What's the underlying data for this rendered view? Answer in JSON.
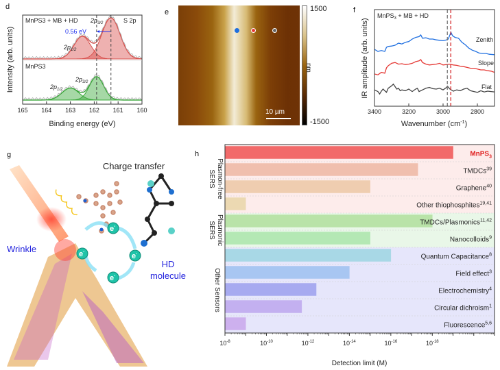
{
  "panels": {
    "d": {
      "label": "d"
    },
    "e": {
      "label": "e"
    },
    "f": {
      "label": "f"
    },
    "g": {
      "label": "g"
    },
    "h": {
      "label": "h"
    }
  },
  "chart_data": [
    {
      "id": "d",
      "type": "line",
      "title": "S 2p",
      "xlabel": "Binding energy (eV)",
      "ylabel": "Intensity (arb. units)",
      "xlim": [
        165,
        160
      ],
      "xticks": [
        "165",
        "164",
        "163",
        "162",
        "161",
        "160"
      ],
      "reference_lines": [
        161.9,
        161.3
      ],
      "shift_annotation": "0.56 eV",
      "colors": {
        "top": "#d9534f",
        "bottom": "#3aa83a",
        "raw": "#aaaaaa",
        "shift": "#2233ee"
      },
      "series": [
        {
          "name": "MnPS3 + MB + HD",
          "label_sub": "3",
          "peaks": [
            {
              "label": "2p1/2",
              "center": 162.5,
              "height": 0.55,
              "width": 0.35
            },
            {
              "label": "2p3/2",
              "center": 161.3,
              "height": 1.0,
              "width": 0.38
            }
          ]
        },
        {
          "name": "MnPS3",
          "label_sub": "3",
          "peaks": [
            {
              "label": "2p1/2",
              "center": 163.0,
              "height": 0.32,
              "width": 0.35
            },
            {
              "label": "2p3/2",
              "center": 161.9,
              "height": 0.62,
              "width": 0.3
            }
          ]
        }
      ]
    },
    {
      "id": "e",
      "type": "heatmap",
      "colorbar": {
        "max": "1500",
        "min": "-1500",
        "unit": "nm"
      },
      "scalebar": "10 µm",
      "markers": [
        {
          "name": "zenith",
          "color": "#1f6fe0"
        },
        {
          "name": "slope",
          "color": "#e53935"
        },
        {
          "name": "flat",
          "color": "#666666"
        }
      ]
    },
    {
      "id": "f",
      "type": "line",
      "annotation": "MnPS3 + MB + HD",
      "xlabel": "Wavenumber (cm-1)",
      "xlabel_main": "Wavenumber (cm",
      "xlabel_sup": "-1",
      "xlabel_end": ")",
      "ylabel": "IR amplitude (arb. units)",
      "xlim": [
        3400,
        2700
      ],
      "xticks": [
        "3400",
        "3200",
        "3000",
        "2800"
      ],
      "reference_lines": [
        {
          "x": 2975,
          "color": "#777777"
        },
        {
          "x": 2955,
          "color": "#d62728"
        }
      ],
      "series": [
        {
          "name": "Zenith",
          "color": "#1f6fe0",
          "x": [
            3400,
            3380,
            3360,
            3340,
            3330,
            3320,
            3300,
            3280,
            3260,
            3240,
            3220,
            3200,
            3180,
            3160,
            3140,
            3130,
            3120,
            3100,
            3080,
            3060,
            3040,
            3020,
            3000,
            2980,
            2970,
            2960,
            2955,
            2945,
            2930,
            2910,
            2890,
            2870,
            2850,
            2830,
            2810,
            2790,
            2770,
            2750,
            2730,
            2700
          ],
          "y": [
            0.55,
            0.5,
            0.52,
            0.5,
            0.6,
            0.62,
            0.63,
            0.65,
            0.7,
            0.68,
            0.72,
            0.74,
            0.8,
            0.84,
            0.86,
            0.9,
            0.82,
            0.83,
            0.8,
            0.8,
            0.78,
            0.77,
            0.76,
            0.78,
            0.8,
            0.9,
            0.97,
            0.88,
            0.84,
            0.82,
            0.72,
            0.66,
            0.58,
            0.53,
            0.5,
            0.46,
            0.45,
            0.45,
            0.43,
            0.42
          ]
        },
        {
          "name": "Slope",
          "color": "#e53935",
          "x": [
            3400,
            3380,
            3360,
            3340,
            3330,
            3320,
            3300,
            3280,
            3260,
            3240,
            3220,
            3200,
            3180,
            3160,
            3140,
            3130,
            3120,
            3100,
            3080,
            3060,
            3040,
            3020,
            3000,
            2980,
            2960,
            2940,
            2920,
            2900,
            2880,
            2860,
            2840,
            2820,
            2800,
            2780,
            2760,
            2740,
            2720,
            2700
          ],
          "y": [
            0.2,
            0.18,
            0.24,
            0.22,
            0.35,
            0.4,
            0.46,
            0.48,
            0.44,
            0.45,
            0.43,
            0.44,
            0.46,
            0.5,
            0.52,
            0.55,
            0.48,
            0.44,
            0.42,
            0.43,
            0.44,
            0.46,
            0.42,
            0.43,
            0.44,
            0.42,
            0.41,
            0.39,
            0.38,
            0.36,
            0.34,
            0.34,
            0.32,
            0.3,
            0.3,
            0.28,
            0.27,
            0.24
          ]
        },
        {
          "name": "Flat",
          "color": "#444444",
          "x": [
            3400,
            3390,
            3380,
            3370,
            3360,
            3350,
            3340,
            3330,
            3320,
            3300,
            3290,
            3280,
            3270,
            3260,
            3250,
            3240,
            3220,
            3200,
            3180,
            3160,
            3150,
            3140,
            3120,
            3100,
            3080,
            3060,
            3040,
            3020,
            3000,
            2980,
            2975,
            2960,
            2940,
            2920,
            2900,
            2880,
            2860,
            2840,
            2820,
            2800,
            2780,
            2760,
            2740,
            2720,
            2700
          ],
          "y": [
            0.08,
            0.06,
            0.04,
            -0.02,
            0.05,
            0.1,
            0.06,
            0.02,
            0.12,
            0.18,
            0.22,
            0.16,
            0.1,
            0.12,
            0.06,
            0.08,
            0.06,
            0.1,
            0.04,
            0.1,
            0.12,
            0.04,
            0.08,
            0.12,
            0.14,
            0.11,
            0.1,
            0.12,
            0.08,
            0.14,
            0.17,
            0.1,
            0.05,
            0.08,
            0.06,
            0.1,
            0.12,
            0.06,
            0.04,
            0.02,
            0.06,
            0.03,
            0.05,
            0.04,
            0.03
          ]
        }
      ]
    },
    {
      "id": "h",
      "type": "bar",
      "orientation": "horizontal",
      "xlabel": "Detection limit (M)",
      "xscale": "log",
      "xlim_exponent": [
        -8,
        -21
      ],
      "xticks": [
        {
          "exp": -8,
          "label_base": "10",
          "label_sup": "-8"
        },
        {
          "exp": -10,
          "label_base": "10",
          "label_sup": "-10"
        },
        {
          "exp": -12,
          "label_base": "10",
          "label_sup": "-12"
        },
        {
          "exp": -14,
          "label_base": "10",
          "label_sup": "-14"
        },
        {
          "exp": -16,
          "label_base": "10",
          "label_sup": "-16"
        },
        {
          "exp": -18,
          "label_base": "10",
          "label_sup": "-18"
        }
      ],
      "groups": [
        {
          "name": "Plasmon-free SERS",
          "line1": "Plasmon-free",
          "line2": "SERS",
          "bg": "#fdeceb",
          "rows": [
            0,
            3
          ]
        },
        {
          "name": "Plasmonic SERS",
          "line1": "Plasmonic",
          "line2": "SERS",
          "bg": "#e9f7e8",
          "rows": [
            4,
            5
          ]
        },
        {
          "name": "Other Sensors",
          "line1": "Other Sensors",
          "line2": "",
          "bg": "#e6e6fb",
          "rows": [
            6,
            10
          ]
        }
      ],
      "categories": [
        "MnPS3",
        "TMDCs",
        "Graphene",
        "Other thiophosphites",
        "TMDCs/Plasmonics",
        "Nanocolloids",
        "Quantum Capacitance",
        "Field effect",
        "Electrochemistry",
        "Circular dichroism",
        "Fluorescence"
      ],
      "bars": [
        {
          "label": "MnPS",
          "sub": "3",
          "ref": "",
          "exp": -19,
          "color": "#f26a6a",
          "highlight": true
        },
        {
          "label": "TMDCs",
          "sub": "",
          "ref": "39",
          "exp": -17.3,
          "color": "#f0bfae",
          "highlight": false
        },
        {
          "label": "Graphene",
          "sub": "",
          "ref": "40",
          "exp": -15,
          "color": "#efcdb0",
          "highlight": false
        },
        {
          "label": "Other thiophosphites",
          "sub": "",
          "ref": "19,41",
          "exp": -9,
          "color": "#ecd9b2",
          "highlight": false
        },
        {
          "label": "TMDCs/Plasmonics",
          "sub": "",
          "ref": "11,42",
          "exp": -18,
          "color": "#b9e3a8",
          "highlight": false
        },
        {
          "label": "Nanocolloids",
          "sub": "",
          "ref": "9",
          "exp": -15,
          "color": "#b4e8b4",
          "highlight": false
        },
        {
          "label": "Quantum Capacitance",
          "sub": "",
          "ref": "8",
          "exp": -16,
          "color": "#a8d8e6",
          "highlight": false
        },
        {
          "label": "Field effect",
          "sub": "",
          "ref": "3",
          "exp": -14,
          "color": "#a8c6f2",
          "highlight": false
        },
        {
          "label": "Electrochemistry",
          "sub": "",
          "ref": "4",
          "exp": -12.4,
          "color": "#a7aaf0",
          "highlight": false
        },
        {
          "label": "Circular dichroism",
          "sub": "",
          "ref": "1",
          "exp": -11.7,
          "color": "#c3b0f0",
          "highlight": false
        },
        {
          "label": "Fluorescence",
          "sub": "",
          "ref": "5,6",
          "exp": -9,
          "color": "#cdb0ee",
          "highlight": false
        }
      ]
    }
  ],
  "illustration": {
    "title": "Charge transfer",
    "wrinkle_label": "Wrinkle",
    "molecule_label_line1": "HD",
    "molecule_label_line2": "molecule",
    "electron_symbol": "e",
    "electron_sup": "-",
    "label_color": "#2222dd"
  }
}
